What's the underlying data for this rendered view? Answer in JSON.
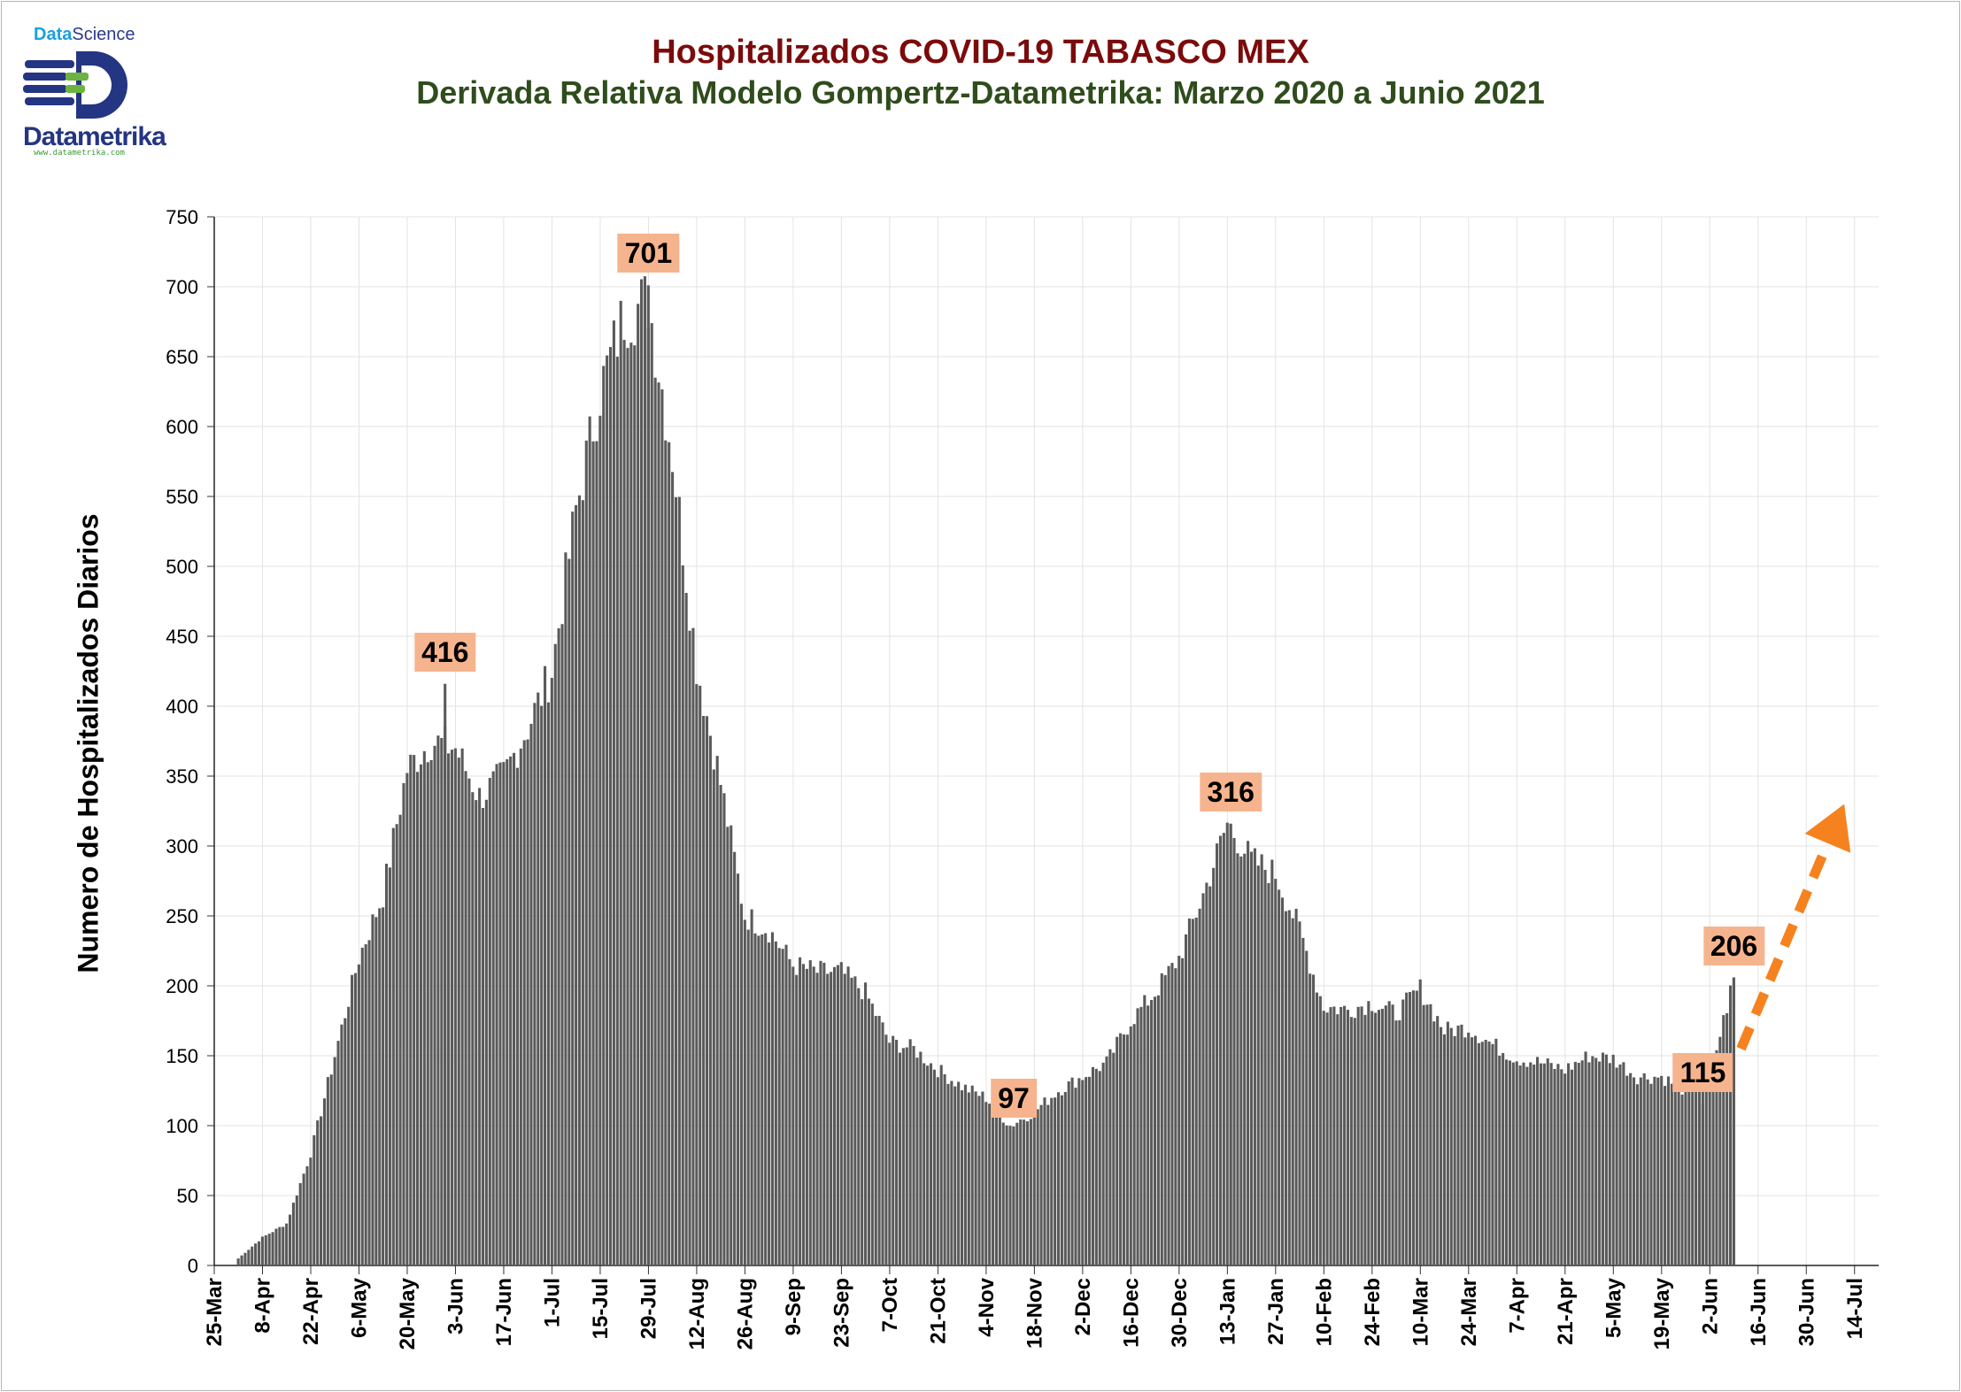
{
  "logo": {
    "brand_top_a": "Data",
    "brand_top_b": "Science",
    "name": "Datametrika",
    "url": "www.datametrika.com",
    "colors": {
      "navy": "#243583",
      "green": "#6cb33f",
      "blue": "#1aa0dc"
    }
  },
  "title": "Hospitalizados COVID-19 TABASCO MEX",
  "subtitle": "Derivada Relativa Modelo Gompertz-Datametrika: Marzo 2020 a Junio 2021",
  "chart_data": {
    "type": "bar",
    "title": "Hospitalizados COVID-19 TABASCO MEX",
    "subtitle": "Derivada Relativa Modelo Gompertz-Datametrika: Marzo 2020 a Junio 2021",
    "ylabel": "Numero de Hospitalizados Diarios",
    "xlabel": "",
    "ylim": [
      0,
      750
    ],
    "yticks": [
      0,
      50,
      100,
      150,
      200,
      250,
      300,
      350,
      400,
      450,
      500,
      550,
      600,
      650,
      700,
      750
    ],
    "x_tick_labels": [
      "25-Mar",
      "8-Apr",
      "22-Apr",
      "6-May",
      "20-May",
      "3-Jun",
      "17-Jun",
      "1-Jul",
      "15-Jul",
      "29-Jul",
      "12-Aug",
      "26-Aug",
      "9-Sep",
      "23-Sep",
      "7-Oct",
      "21-Oct",
      "4-Nov",
      "18-Nov",
      "2-Dec",
      "16-Dec",
      "30-Dec",
      "13-Jan",
      "27-Jan",
      "10-Feb",
      "24-Feb",
      "10-Mar",
      "24-Mar",
      "7-Apr",
      "21-Apr",
      "5-May",
      "19-May",
      "2-Jun",
      "16-Jun",
      "30-Jun",
      "14-Jul"
    ],
    "x_range": [
      "2020-03-25",
      "2021-07-21"
    ],
    "series_start": "2020-04-01",
    "grid": true,
    "bar_color": "#5a5a5a",
    "weekly_points": [
      [
        "2020-04-01",
        5
      ],
      [
        "2020-04-08",
        20
      ],
      [
        "2020-04-15",
        30
      ],
      [
        "2020-04-22",
        80
      ],
      [
        "2020-04-29",
        150
      ],
      [
        "2020-05-06",
        220
      ],
      [
        "2020-05-13",
        265
      ],
      [
        "2020-05-20",
        355
      ],
      [
        "2020-05-27",
        375
      ],
      [
        "2020-06-03",
        370
      ],
      [
        "2020-06-10",
        335
      ],
      [
        "2020-06-17",
        350
      ],
      [
        "2020-06-24",
        385
      ],
      [
        "2020-07-01",
        425
      ],
      [
        "2020-07-08",
        540
      ],
      [
        "2020-07-15",
        625
      ],
      [
        "2020-07-22",
        680
      ],
      [
        "2020-07-29",
        690
      ],
      [
        "2020-08-05",
        580
      ],
      [
        "2020-08-12",
        430
      ],
      [
        "2020-08-19",
        345
      ],
      [
        "2020-08-26",
        250
      ],
      [
        "2020-09-02",
        240
      ],
      [
        "2020-09-09",
        215
      ],
      [
        "2020-09-16",
        210
      ],
      [
        "2020-09-23",
        210
      ],
      [
        "2020-09-30",
        195
      ],
      [
        "2020-10-07",
        160
      ],
      [
        "2020-10-14",
        155
      ],
      [
        "2020-10-21",
        140
      ],
      [
        "2020-10-28",
        128
      ],
      [
        "2020-11-04",
        120
      ],
      [
        "2020-11-11",
        100
      ],
      [
        "2020-11-18",
        110
      ],
      [
        "2020-11-25",
        125
      ],
      [
        "2020-12-02",
        135
      ],
      [
        "2020-12-09",
        145
      ],
      [
        "2020-12-16",
        175
      ],
      [
        "2020-12-23",
        195
      ],
      [
        "2020-12-30",
        220
      ],
      [
        "2021-01-06",
        265
      ],
      [
        "2021-01-13",
        316
      ],
      [
        "2021-01-20",
        290
      ],
      [
        "2021-01-27",
        280
      ],
      [
        "2021-02-03",
        240
      ],
      [
        "2021-02-10",
        185
      ],
      [
        "2021-02-17",
        183
      ],
      [
        "2021-02-24",
        188
      ],
      [
        "2021-03-03",
        180
      ],
      [
        "2021-03-10",
        198
      ],
      [
        "2021-03-17",
        168
      ],
      [
        "2021-03-24",
        170
      ],
      [
        "2021-03-31",
        158
      ],
      [
        "2021-04-07",
        148
      ],
      [
        "2021-04-14",
        145
      ],
      [
        "2021-04-21",
        140
      ],
      [
        "2021-04-28",
        150
      ],
      [
        "2021-05-05",
        148
      ],
      [
        "2021-05-12",
        135
      ],
      [
        "2021-05-19",
        135
      ],
      [
        "2021-05-26",
        125
      ],
      [
        "2021-06-02",
        135
      ],
      [
        "2021-06-06",
        175
      ],
      [
        "2021-06-09",
        206
      ]
    ],
    "annotations": [
      {
        "label": "416",
        "date": "2020-05-31",
        "value": 416
      },
      {
        "label": "701",
        "date": "2020-07-29",
        "value": 701
      },
      {
        "label": "97",
        "date": "2020-11-12",
        "value": 97
      },
      {
        "label": "316",
        "date": "2021-01-14",
        "value": 316
      },
      {
        "label": "115",
        "date": "2021-05-31",
        "value": 115
      },
      {
        "label": "206",
        "date": "2021-06-09",
        "value": 206
      }
    ],
    "trend_arrow": {
      "color": "#f5821f",
      "from": [
        "2021-06-09",
        155
      ],
      "to": [
        "2021-07-11",
        330
      ]
    },
    "annotation_fill": "#f6b48e"
  }
}
